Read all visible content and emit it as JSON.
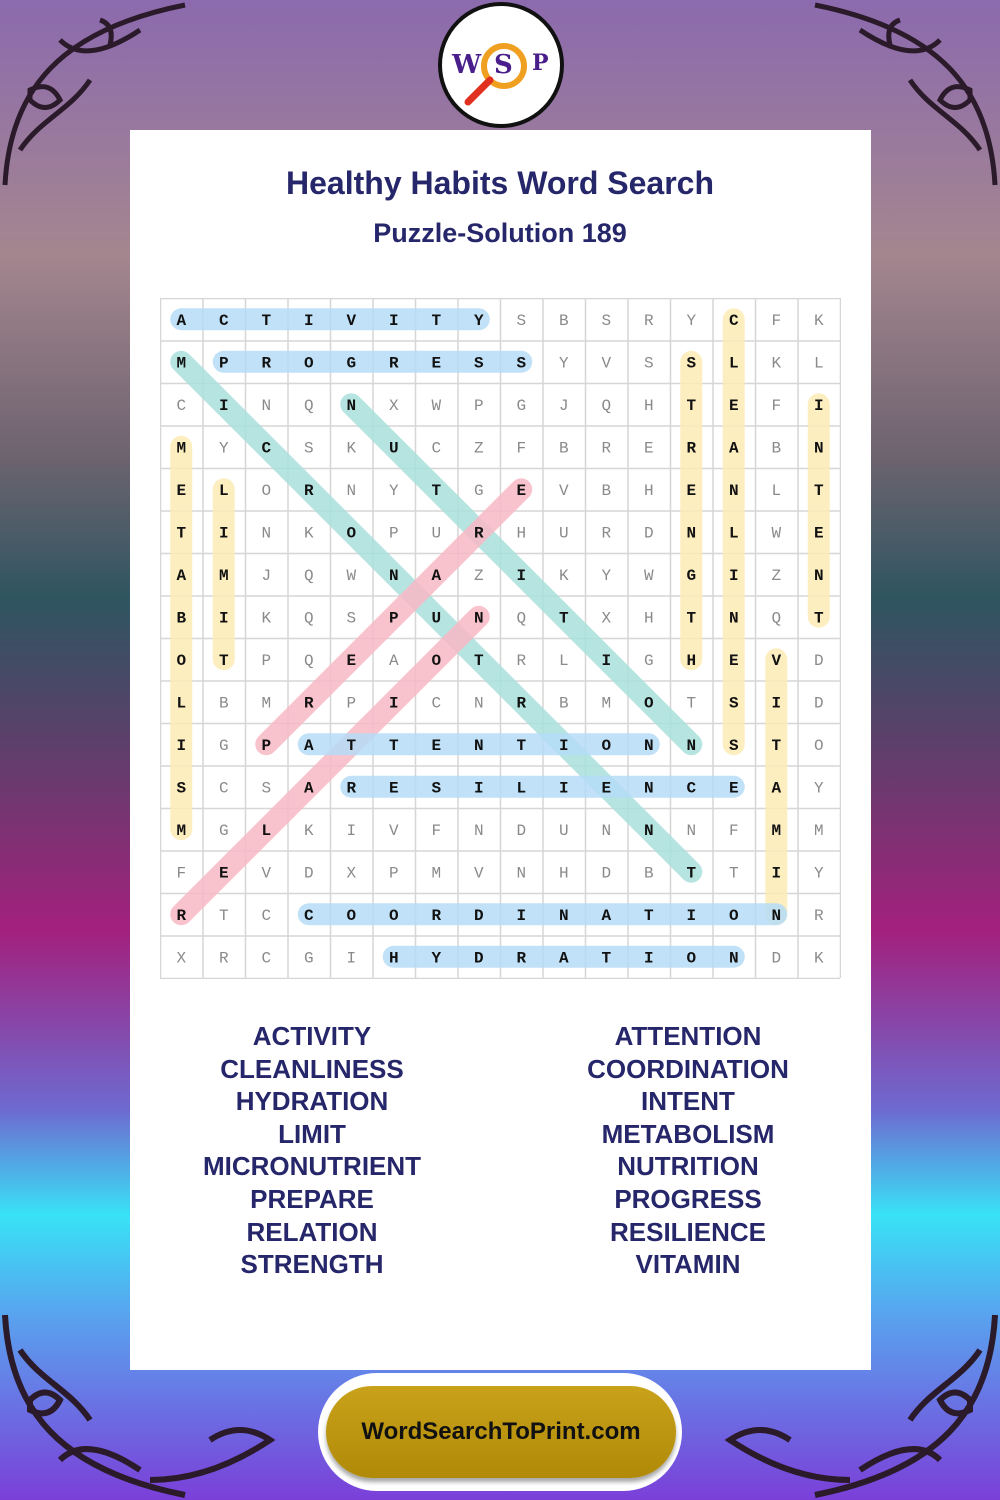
{
  "title": "Healthy Habits Word Search",
  "subtitle": "Puzzle-Solution 189",
  "logo": {
    "letters": [
      "W",
      "S",
      "P"
    ]
  },
  "footer": {
    "site": "WordSearchToPrint.com"
  },
  "colors": {
    "title": "#26266a",
    "blue": "#b5dcf6",
    "teal": "#a9e1dc",
    "yellow": "#fdebb5",
    "pink": "#f8b8c6",
    "footer": "#c09612"
  },
  "grid": [
    "ACTIVITYSBSRYCFK",
    "MPROGRESSYVSSLKL",
    "CINQNXWPGJQHTEFI",
    "MYCSKUCZFBRERABN",
    "ELORNYTGEVBHENLT",
    "TINKOPURHURDNLWE",
    "AMJQWNAZIKYWGIZN",
    "BIKQSPUNQTXHTNQT",
    "OTPQEAOTRLIGHEVD",
    "LBMRPICNRBMOTSID",
    "IGPATTENTIONNSTO",
    "SCSARESILIENCEAY",
    "MGLKIVFNDUNNNFMM",
    "FEVDXPMVNHDBTTIY",
    "RTCCOORDINATIONR",
    "XRCGIHYDRATIONDK"
  ],
  "solutions": [
    {
      "word": "ACTIVITY",
      "start": [
        0,
        0
      ],
      "end": [
        0,
        7
      ],
      "color": "blue"
    },
    {
      "word": "PROGRESS",
      "start": [
        1,
        1
      ],
      "end": [
        1,
        8
      ],
      "color": "blue"
    },
    {
      "word": "MICRONUTRIENT",
      "start": [
        1,
        0
      ],
      "end": [
        13,
        12
      ],
      "color": "teal"
    },
    {
      "word": "NUTRITION",
      "start": [
        2,
        4
      ],
      "end": [
        10,
        12
      ],
      "color": "teal"
    },
    {
      "word": "METABOLISM",
      "start": [
        3,
        0
      ],
      "end": [
        12,
        0
      ],
      "color": "yellow"
    },
    {
      "word": "LIMIT",
      "start": [
        4,
        1
      ],
      "end": [
        8,
        1
      ],
      "color": "yellow"
    },
    {
      "word": "STRENGTH",
      "start": [
        1,
        12
      ],
      "end": [
        8,
        12
      ],
      "color": "yellow"
    },
    {
      "word": "CLEANLINESS",
      "start": [
        0,
        13
      ],
      "end": [
        10,
        13
      ],
      "color": "yellow"
    },
    {
      "word": "INTENT",
      "start": [
        2,
        15
      ],
      "end": [
        7,
        15
      ],
      "color": "yellow"
    },
    {
      "word": "VITAMIN",
      "start": [
        8,
        14
      ],
      "end": [
        14,
        14
      ],
      "color": "yellow"
    },
    {
      "word": "PREPARE",
      "start": [
        10,
        2
      ],
      "end": [
        4,
        8
      ],
      "color": "pink"
    },
    {
      "word": "RELATION",
      "start": [
        14,
        0
      ],
      "end": [
        7,
        7
      ],
      "color": "pink"
    },
    {
      "word": "ATTENTION",
      "start": [
        10,
        3
      ],
      "end": [
        10,
        11
      ],
      "color": "blue"
    },
    {
      "word": "RESILIENCE",
      "start": [
        11,
        4
      ],
      "end": [
        11,
        13
      ],
      "color": "blue"
    },
    {
      "word": "COORDINATION",
      "start": [
        14,
        3
      ],
      "end": [
        14,
        14
      ],
      "color": "blue"
    },
    {
      "word": "HYDRATION",
      "start": [
        15,
        5
      ],
      "end": [
        15,
        13
      ],
      "color": "blue"
    }
  ],
  "word_list": {
    "left": [
      "ACTIVITY",
      "CLEANLINESS",
      "HYDRATION",
      "LIMIT",
      "MICRONUTRIENT",
      "PREPARE",
      "RELATION",
      "STRENGTH"
    ],
    "right": [
      "ATTENTION",
      "COORDINATION",
      "INTENT",
      "METABOLISM",
      "NUTRITION",
      "PROGRESS",
      "RESILIENCE",
      "VITAMIN"
    ]
  }
}
